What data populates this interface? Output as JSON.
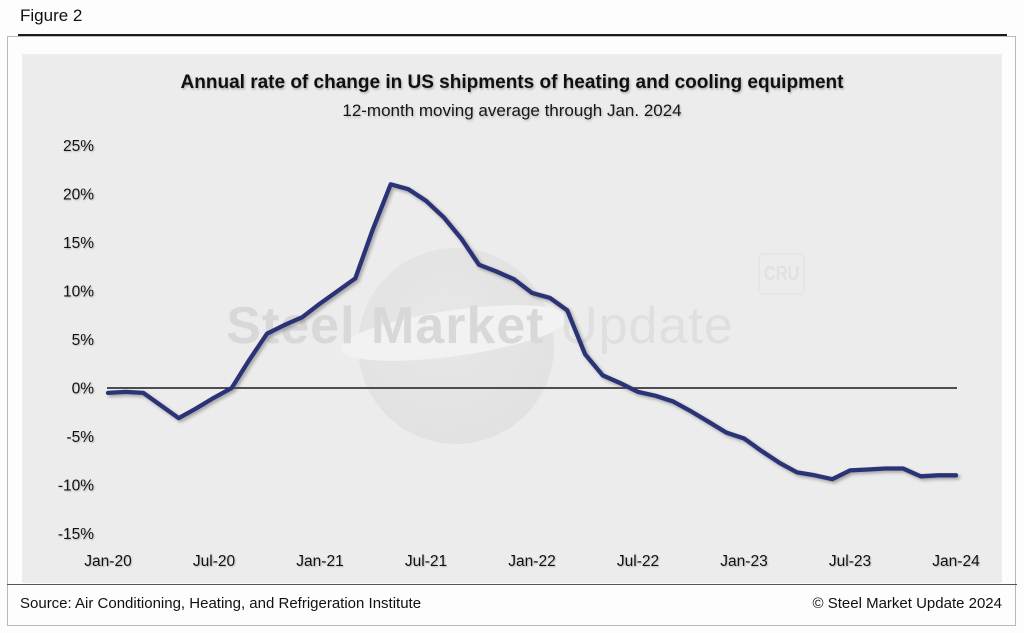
{
  "figure_label": "Figure 2",
  "watermark": {
    "bold": "Steel Market",
    "light": "Update",
    "badge": "CRU"
  },
  "footer": {
    "source": "Source: Air Conditioning, Heating, and Refrigeration Institute",
    "copyright": "© Steel Market Update 2024"
  },
  "chart_data": {
    "type": "line",
    "title": "Annual rate of change in US shipments of heating and cooling equipment",
    "subtitle": "12-month moving average through Jan. 2024",
    "line_color": "#2b3377",
    "zero_line": true,
    "grid": false,
    "legend": "none",
    "ylim": [
      -15,
      25
    ],
    "y_ticks": [
      25,
      20,
      15,
      10,
      5,
      0,
      -5,
      -10,
      -15
    ],
    "y_tick_labels": [
      "25%",
      "20%",
      "15%",
      "10%",
      "5%",
      "0%",
      "-5%",
      "-10%",
      "-15%"
    ],
    "x_tick_labels": [
      "Jan-20",
      "Jul-20",
      "Jan-21",
      "Jul-21",
      "Jan-22",
      "Jul-22",
      "Jan-23",
      "Jul-23",
      "Jan-24"
    ],
    "categories": [
      "Jan-20",
      "Feb-20",
      "Mar-20",
      "Apr-20",
      "May-20",
      "Jun-20",
      "Jul-20",
      "Aug-20",
      "Sep-20",
      "Oct-20",
      "Nov-20",
      "Dec-20",
      "Jan-21",
      "Feb-21",
      "Mar-21",
      "Apr-21",
      "May-21",
      "Jun-21",
      "Jul-21",
      "Aug-21",
      "Sep-21",
      "Oct-21",
      "Nov-21",
      "Dec-21",
      "Jan-22",
      "Feb-22",
      "Mar-22",
      "Apr-22",
      "May-22",
      "Jun-22",
      "Jul-22",
      "Aug-22",
      "Sep-22",
      "Oct-22",
      "Nov-22",
      "Dec-22",
      "Jan-23",
      "Feb-23",
      "Mar-23",
      "Apr-23",
      "May-23",
      "Jun-23",
      "Jul-23",
      "Aug-23",
      "Sep-23",
      "Oct-23",
      "Nov-23",
      "Dec-23",
      "Jan-24"
    ],
    "values": [
      -0.5,
      -0.4,
      -0.5,
      -1.8,
      -3.1,
      -2.1,
      -1.0,
      0.0,
      2.9,
      5.6,
      6.5,
      7.3,
      8.7,
      10.0,
      11.3,
      16.4,
      21.0,
      20.5,
      19.3,
      17.6,
      15.4,
      12.7,
      12.0,
      11.2,
      9.8,
      9.3,
      8.0,
      3.5,
      1.3,
      0.5,
      -0.4,
      -0.8,
      -1.4,
      -2.4,
      -3.5,
      -4.6,
      -5.2,
      -6.5,
      -7.7,
      -8.7,
      -9.0,
      -9.4,
      -8.5,
      -8.4,
      -8.3,
      -8.3,
      -9.1,
      -9.0,
      -9.0
    ]
  }
}
